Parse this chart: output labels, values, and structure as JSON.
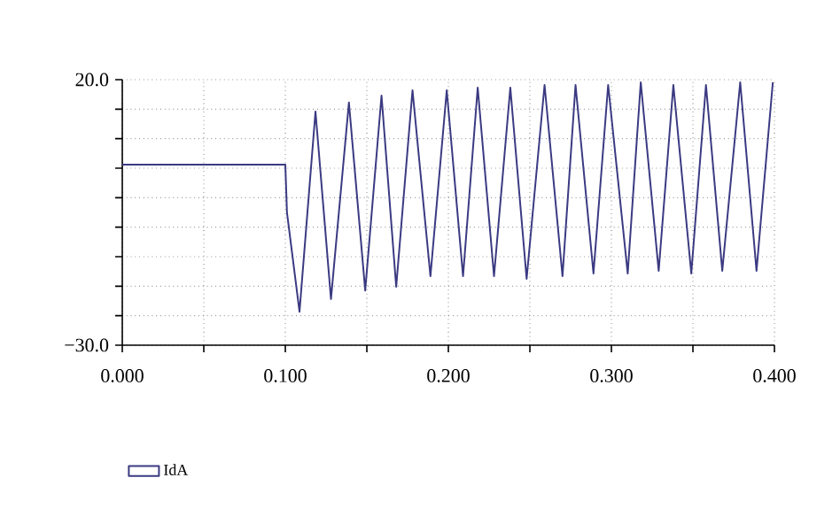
{
  "chart_data": {
    "type": "line",
    "x": [
      0,
      0.02,
      0.04,
      0.06,
      0.08,
      0.1,
      0.101,
      0.1087,
      0.1185,
      0.128,
      0.139,
      0.149,
      0.159,
      0.168,
      0.178,
      0.189,
      0.199,
      0.209,
      0.218,
      0.228,
      0.238,
      0.248,
      0.259,
      0.27,
      0.278,
      0.289,
      0.298,
      0.31,
      0.318,
      0.329,
      0.338,
      0.349,
      0.358,
      0.368,
      0.379,
      0.389,
      0.399
    ],
    "series": [
      {
        "name": "IdA",
        "color": "#3b3a82",
        "values": [
          4,
          4,
          4,
          4,
          4,
          4,
          -5,
          -23.7,
          14,
          -21.3,
          15.7,
          -19.7,
          17,
          -19,
          18,
          -17,
          18,
          -17,
          18.5,
          -17,
          18.5,
          -17.5,
          19,
          -17,
          19,
          -16.5,
          19,
          -16.5,
          19.5,
          -16,
          19,
          -16.5,
          19,
          -16,
          19.5,
          -16,
          19.5
        ]
      }
    ],
    "xlim": [
      0,
      0.4
    ],
    "ylim": [
      -30,
      20
    ],
    "xticks": [
      {
        "value": 0,
        "label": "0.000"
      },
      {
        "value": 0.05,
        "label": null
      },
      {
        "value": 0.1,
        "label": "0.100"
      },
      {
        "value": 0.15,
        "label": null
      },
      {
        "value": 0.2,
        "label": "0.200"
      },
      {
        "value": 0.25,
        "label": null
      },
      {
        "value": 0.3,
        "label": "0.300"
      },
      {
        "value": 0.35,
        "label": null
      },
      {
        "value": 0.4,
        "label": "0.400"
      }
    ],
    "yticks": [
      {
        "value": -30,
        "label": "−30.0"
      },
      {
        "value": -24.444,
        "label": null
      },
      {
        "value": -18.889,
        "label": null
      },
      {
        "value": -13.333,
        "label": null
      },
      {
        "value": -7.778,
        "label": null
      },
      {
        "value": -2.222,
        "label": null
      },
      {
        "value": 3.333,
        "label": null
      },
      {
        "value": 8.889,
        "label": null
      },
      {
        "value": 14.444,
        "label": null
      },
      {
        "value": 20,
        "label": "20.0"
      }
    ],
    "grid": true,
    "legend": "bottom left",
    "marker": "none",
    "line_style": "solid"
  }
}
